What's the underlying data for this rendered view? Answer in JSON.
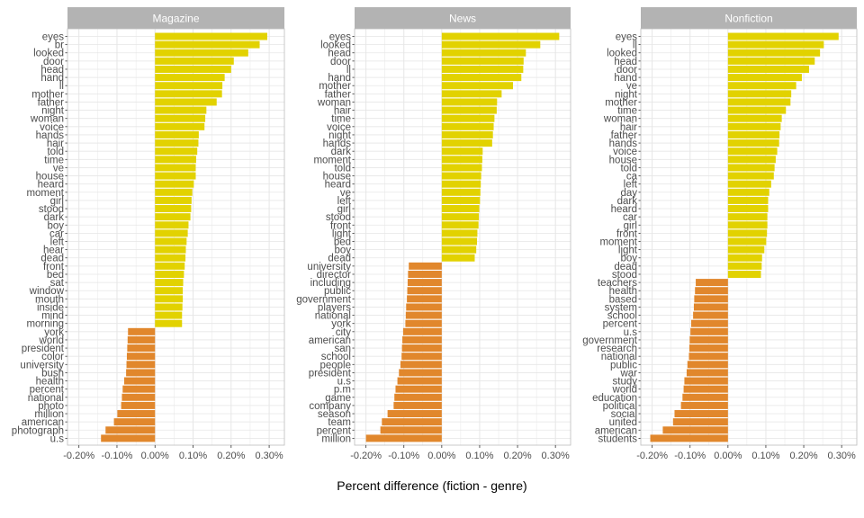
{
  "chart_data": {
    "type": "bar",
    "orientation": "horizontal",
    "xlabel": "Percent difference (fiction - genre)",
    "xlim": [
      -0.0023,
      0.0034
    ],
    "xticks": [
      -0.002,
      -0.001,
      0.0,
      0.001,
      0.002,
      0.003
    ],
    "xtick_labels": [
      "-0.20%",
      "-0.10%",
      "0.00%",
      "0.10%",
      "0.20%",
      "0.30%"
    ],
    "grid": true,
    "colors": {
      "positive": "#E2D200",
      "negative": "#E1872C",
      "strip": "#B3B3B3",
      "strip_text": "#FFFFFF",
      "grid": "#E6E6E6",
      "panel_border": "#BDBDBD"
    },
    "panels": [
      {
        "title": "Magazine",
        "words": [
          "eyes",
          "br",
          "looked",
          "door",
          "head",
          "hand",
          "ll",
          "mother",
          "father",
          "night",
          "woman",
          "voice",
          "hands",
          "hair",
          "told",
          "time",
          "ve",
          "house",
          "heard",
          "moment",
          "girl",
          "stood",
          "dark",
          "boy",
          "car",
          "left",
          "hear",
          "dead",
          "front",
          "bed",
          "sat",
          "window",
          "mouth",
          "inside",
          "mind",
          "morning",
          "york",
          "world",
          "president",
          "color",
          "university",
          "bush",
          "health",
          "percent",
          "national",
          "photo",
          "million",
          "american",
          "photograph",
          "u.s"
        ],
        "values": [
          0.00295,
          0.00275,
          0.00245,
          0.00207,
          0.002,
          0.00183,
          0.00177,
          0.00176,
          0.00162,
          0.00135,
          0.00132,
          0.0013,
          0.00115,
          0.00114,
          0.00111,
          0.00108,
          0.00107,
          0.00107,
          0.00102,
          0.00098,
          0.00096,
          0.00095,
          0.00093,
          0.00088,
          0.00086,
          0.00083,
          0.00081,
          0.0008,
          0.00078,
          0.00076,
          0.00074,
          0.00073,
          0.00073,
          0.00072,
          0.00071,
          0.00071,
          -0.00071,
          -0.00072,
          -0.00073,
          -0.00074,
          -0.00075,
          -0.00076,
          -0.00081,
          -0.00085,
          -0.00087,
          -0.00089,
          -0.00099,
          -0.00108,
          -0.0013,
          -0.00142
        ]
      },
      {
        "title": "News",
        "words": [
          "eyes",
          "looked",
          "head",
          "door",
          "ll",
          "hand",
          "mother",
          "father",
          "woman",
          "hair",
          "time",
          "voice",
          "night",
          "hands",
          "dark",
          "moment",
          "told",
          "house",
          "heard",
          "ve",
          "left",
          "girl",
          "stood",
          "front",
          "light",
          "bed",
          "boy",
          "dead",
          "university",
          "director",
          "including",
          "public",
          "government",
          "players",
          "national",
          "york",
          "city",
          "american",
          "san",
          "school",
          "people",
          "president",
          "u.s",
          "p.m",
          "game",
          "company",
          "season",
          "team",
          "percent",
          "million"
        ],
        "values": [
          0.0031,
          0.0026,
          0.00222,
          0.00216,
          0.00215,
          0.0021,
          0.00188,
          0.00158,
          0.00146,
          0.00145,
          0.00139,
          0.00137,
          0.00135,
          0.00133,
          0.00108,
          0.00107,
          0.00106,
          0.00104,
          0.00103,
          0.00102,
          0.00101,
          0.00099,
          0.00098,
          0.00097,
          0.00094,
          0.00093,
          0.00091,
          0.00087,
          -0.00087,
          -0.00089,
          -0.0009,
          -0.00091,
          -0.00092,
          -0.00094,
          -0.00095,
          -0.00096,
          -0.00102,
          -0.00104,
          -0.00105,
          -0.00106,
          -0.00109,
          -0.00113,
          -0.00117,
          -0.00122,
          -0.00125,
          -0.00127,
          -0.00143,
          -0.00158,
          -0.00162,
          -0.002
        ]
      },
      {
        "title": "Nonfiction",
        "words": [
          "eyes",
          "ll",
          "looked",
          "head",
          "door",
          "hand",
          "ve",
          "night",
          "mother",
          "time",
          "woman",
          "hair",
          "father",
          "hands",
          "voice",
          "house",
          "told",
          "ca",
          "left",
          "day",
          "dark",
          "heard",
          "car",
          "girl",
          "front",
          "moment",
          "light",
          "boy",
          "dead",
          "stood",
          "teachers",
          "health",
          "based",
          "system",
          "school",
          "percent",
          "u.s",
          "government",
          "research",
          "national",
          "public",
          "war",
          "study",
          "world",
          "education",
          "political",
          "social",
          "united",
          "american",
          "students"
        ],
        "values": [
          0.00292,
          0.00253,
          0.00243,
          0.00229,
          0.00214,
          0.00195,
          0.0018,
          0.00167,
          0.00165,
          0.00153,
          0.00142,
          0.00139,
          0.00136,
          0.00135,
          0.0013,
          0.00126,
          0.00123,
          0.00121,
          0.00114,
          0.00109,
          0.00106,
          0.00106,
          0.00104,
          0.00104,
          0.00103,
          0.00101,
          0.00096,
          0.0009,
          0.00089,
          0.00087,
          -0.00085,
          -0.00087,
          -0.00089,
          -0.0009,
          -0.00092,
          -0.00097,
          -0.00099,
          -0.00101,
          -0.00102,
          -0.00103,
          -0.00107,
          -0.00109,
          -0.00115,
          -0.00117,
          -0.0012,
          -0.00124,
          -0.00141,
          -0.00145,
          -0.00172,
          -0.00205
        ]
      }
    ]
  }
}
